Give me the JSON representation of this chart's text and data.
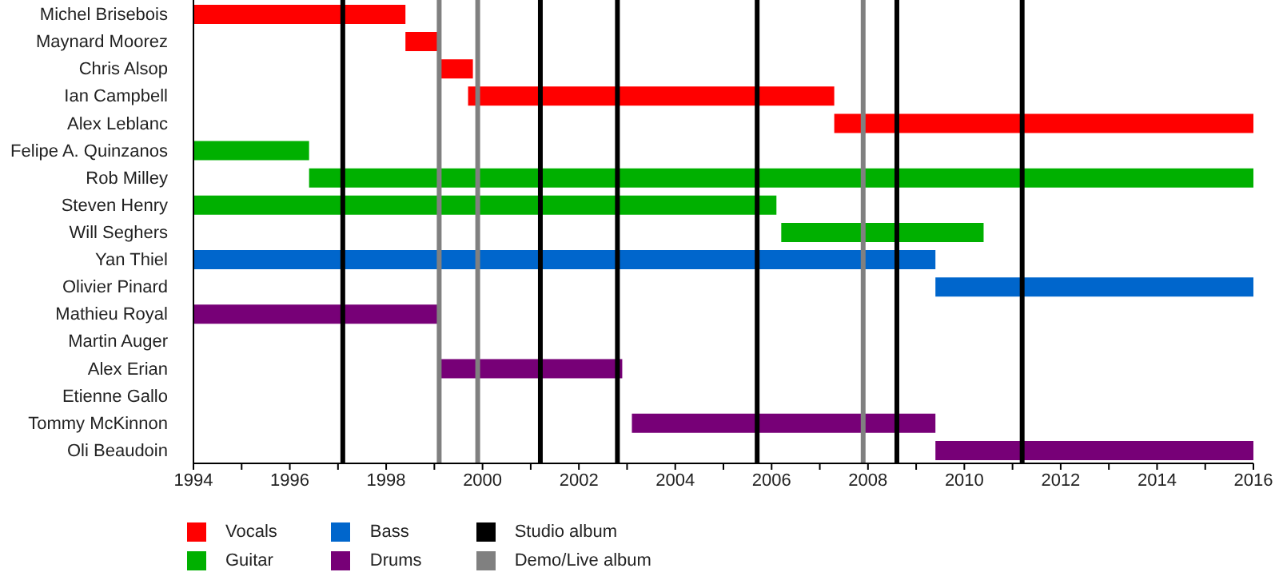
{
  "chart_data": {
    "type": "bar",
    "orientation": "horizontal",
    "legend": "bottom",
    "categories": [
      "Michel Brisebois",
      "Maynard Moorez",
      "Chris Alsop",
      "Ian Campbell",
      "Alex Leblanc",
      "Felipe A. Quinzanos",
      "Rob Milley",
      "Steven Henry",
      "Will Seghers",
      "Yan Thiel",
      "Olivier Pinard",
      "Mathieu Royal",
      "Martin Auger",
      "Alex Erian",
      "Etienne Gallo",
      "Tommy McKinnon",
      "Oli Beaudoin"
    ],
    "xlim": [
      1994,
      2016
    ],
    "xticks": [
      1994,
      {
        "value": 1995,
        "label": null
      },
      1996,
      {
        "value": 1997,
        "label": null
      },
      1998,
      {
        "value": 1999,
        "label": null
      },
      2000,
      {
        "value": 2001,
        "label": null
      },
      2002,
      {
        "value": 2003,
        "label": null
      },
      2004,
      {
        "value": 2005,
        "label": null
      },
      2006,
      {
        "value": 2007,
        "label": null
      },
      2008,
      {
        "value": 2009,
        "label": null
      },
      2010,
      {
        "value": 2011,
        "label": null
      },
      2012,
      {
        "value": 2013,
        "label": null
      },
      2014,
      {
        "value": 2015,
        "label": null
      },
      2016
    ],
    "series": [
      {
        "name": "Vocals",
        "color": "#ff0000",
        "values": [
          4.4,
          0.7,
          0.7,
          7.6,
          8.7,
          null,
          null,
          null,
          null,
          null,
          null,
          null,
          null,
          null,
          null,
          null,
          null
        ],
        "base": [
          1994,
          1998.4,
          1999.1,
          1999.7,
          2007.3,
          null,
          null,
          null,
          null,
          null,
          null,
          null,
          null,
          null,
          null,
          null,
          null
        ]
      },
      {
        "name": "Guitar",
        "color": "#00b000",
        "values": [
          null,
          null,
          null,
          null,
          null,
          2.4,
          19.6,
          12.1,
          4.2,
          null,
          null,
          null,
          null,
          null,
          null,
          null,
          null
        ],
        "base": [
          null,
          null,
          null,
          null,
          null,
          1994,
          1996.4,
          1994,
          2006.2,
          null,
          null,
          null,
          null,
          null,
          null,
          null,
          null
        ]
      },
      {
        "name": "Bass",
        "color": "#0066cc",
        "values": [
          null,
          null,
          null,
          null,
          null,
          null,
          null,
          null,
          null,
          15.4,
          6.6,
          null,
          null,
          null,
          null,
          null,
          null
        ],
        "base": [
          null,
          null,
          null,
          null,
          null,
          null,
          null,
          null,
          null,
          1994,
          2009.4,
          null,
          null,
          null,
          null,
          null,
          null
        ]
      },
      {
        "name": "Drums",
        "color": "#770077",
        "values": [
          null,
          null,
          null,
          null,
          null,
          null,
          null,
          null,
          null,
          null,
          null,
          5.1,
          null,
          3.8,
          null,
          6.3,
          6.6
        ],
        "base": [
          null,
          null,
          null,
          null,
          null,
          null,
          null,
          null,
          null,
          null,
          null,
          1994,
          null,
          1999.1,
          null,
          2003.1,
          2009.4
        ]
      }
    ],
    "ref_lines": [
      {
        "axis": "x",
        "value": 1997.1,
        "label": "Studio album",
        "color": "#000000"
      },
      {
        "axis": "x",
        "value": 2001.2,
        "color": "#000000"
      },
      {
        "axis": "x",
        "value": 2002.8,
        "color": "#000000"
      },
      {
        "axis": "x",
        "value": 2005.7,
        "color": "#000000"
      },
      {
        "axis": "x",
        "value": 2008.6,
        "color": "#000000"
      },
      {
        "axis": "x",
        "value": 2011.2,
        "color": "#000000"
      },
      {
        "axis": "x",
        "value": 1999.1,
        "label": "Demo/Live album",
        "color": "#808080"
      },
      {
        "axis": "x",
        "value": 1999.9,
        "color": "#808080"
      },
      {
        "axis": "x",
        "value": 2007.9,
        "color": "#808080"
      }
    ]
  }
}
